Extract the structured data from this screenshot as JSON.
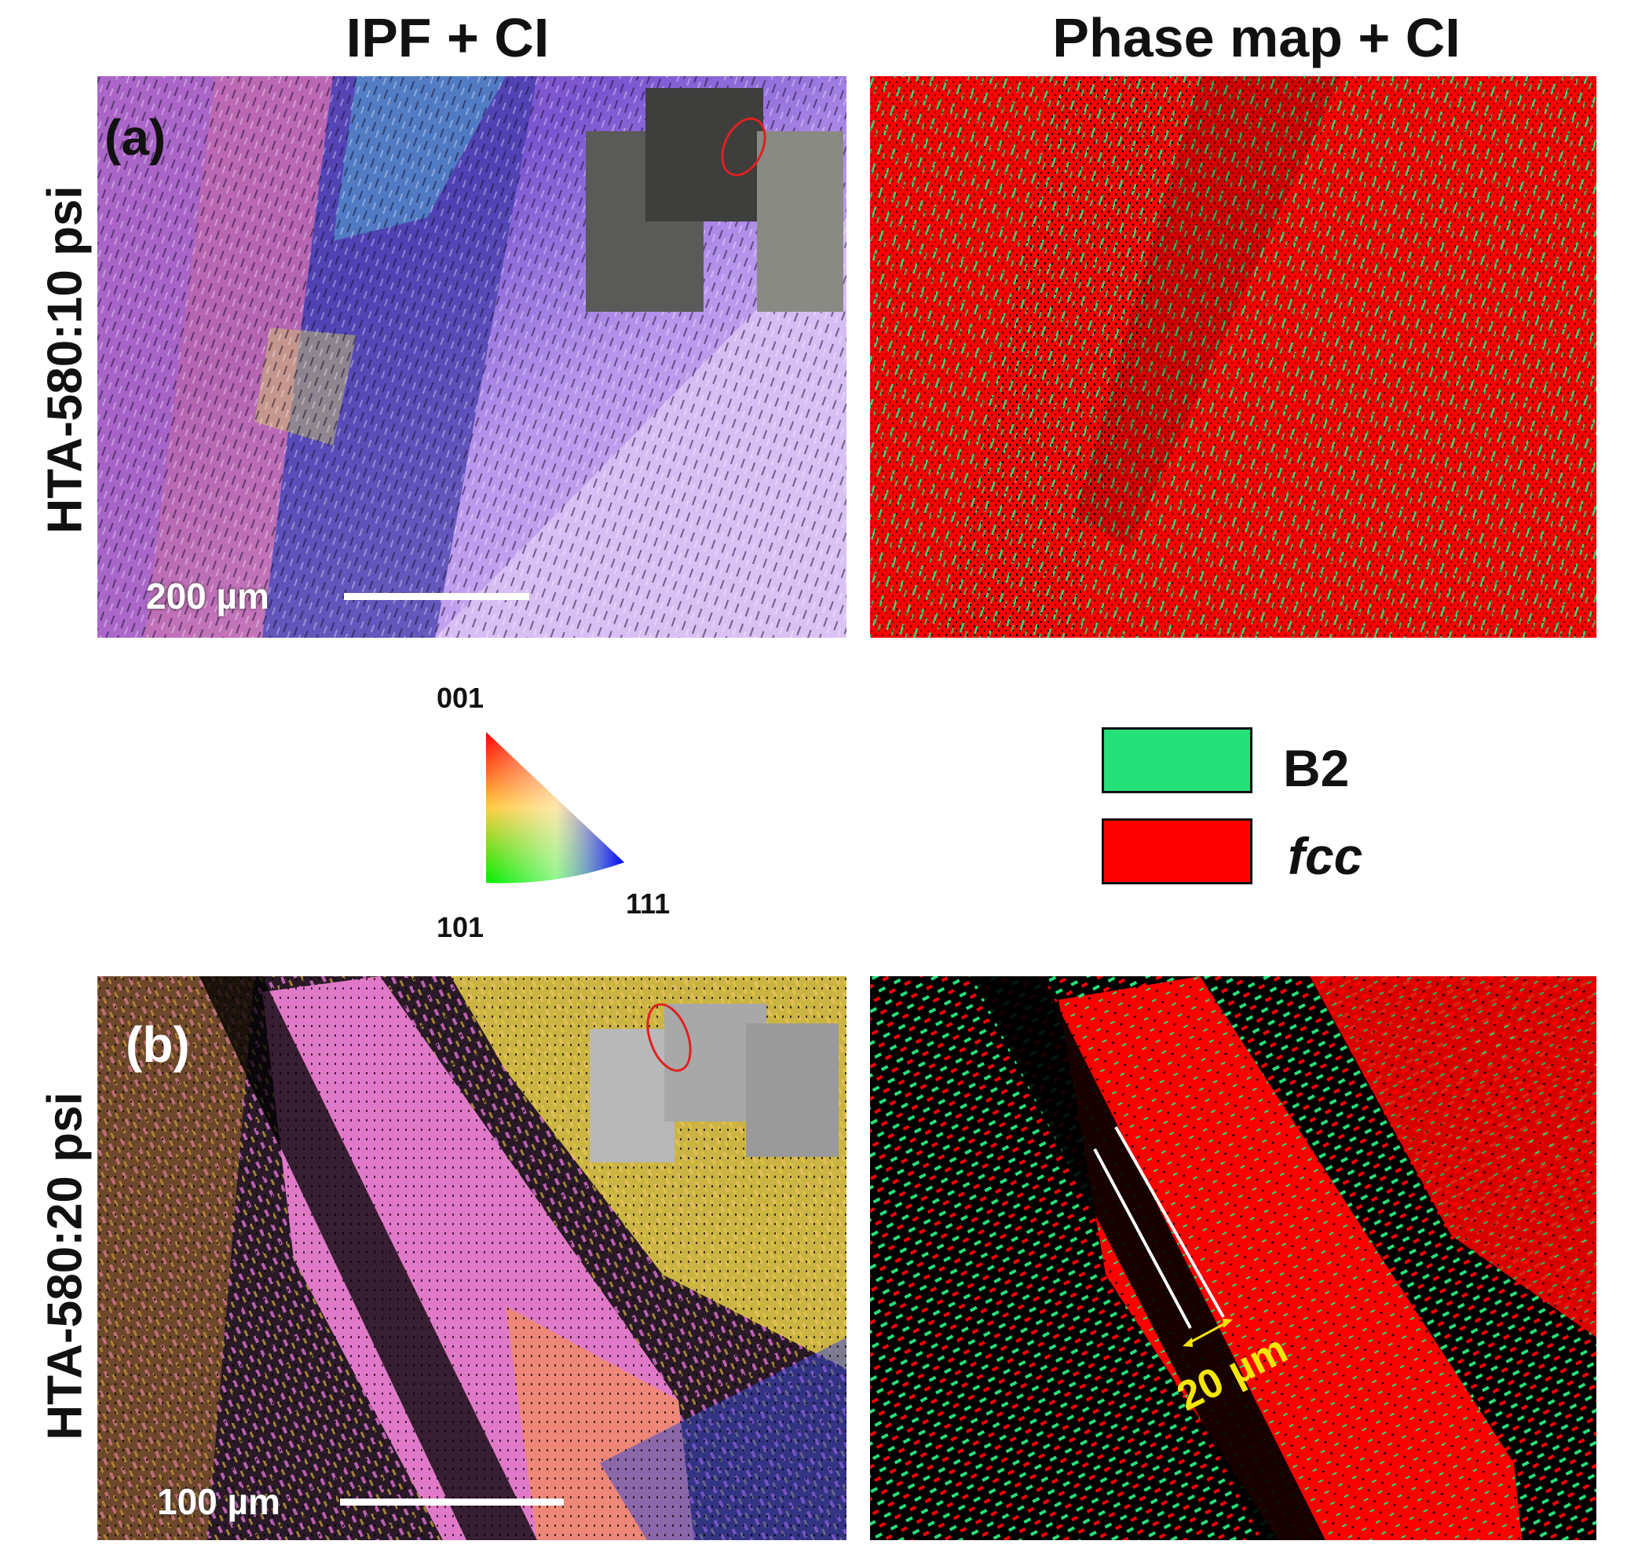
{
  "column_titles": {
    "left": "IPF + CI",
    "right": "Phase map + CI"
  },
  "row_labels": {
    "top": "HTA-580:10 psi",
    "bottom": "HTA-580:20 psi"
  },
  "panels": {
    "a": {
      "letter": "(a)",
      "scale_bar_label": "200 µm"
    },
    "b": {
      "letter": "(b)",
      "scale_bar_label": "100 µm",
      "width_annotation": "20 µm"
    }
  },
  "ipf_key": {
    "top_label": "001",
    "bottom_left_label": "101",
    "bottom_right_label": "111"
  },
  "phase_legend": {
    "items": [
      {
        "label": "B2",
        "italic": false,
        "color": "#26e07a"
      },
      {
        "label": "fcc",
        "italic": true,
        "color": "#ff0000"
      }
    ]
  },
  "colors": {
    "phase_fcc": "#ff0000",
    "phase_b2": "#26e07a",
    "ipf_violet": "#b892e8",
    "annotation_yellow": "#f5e60a"
  }
}
